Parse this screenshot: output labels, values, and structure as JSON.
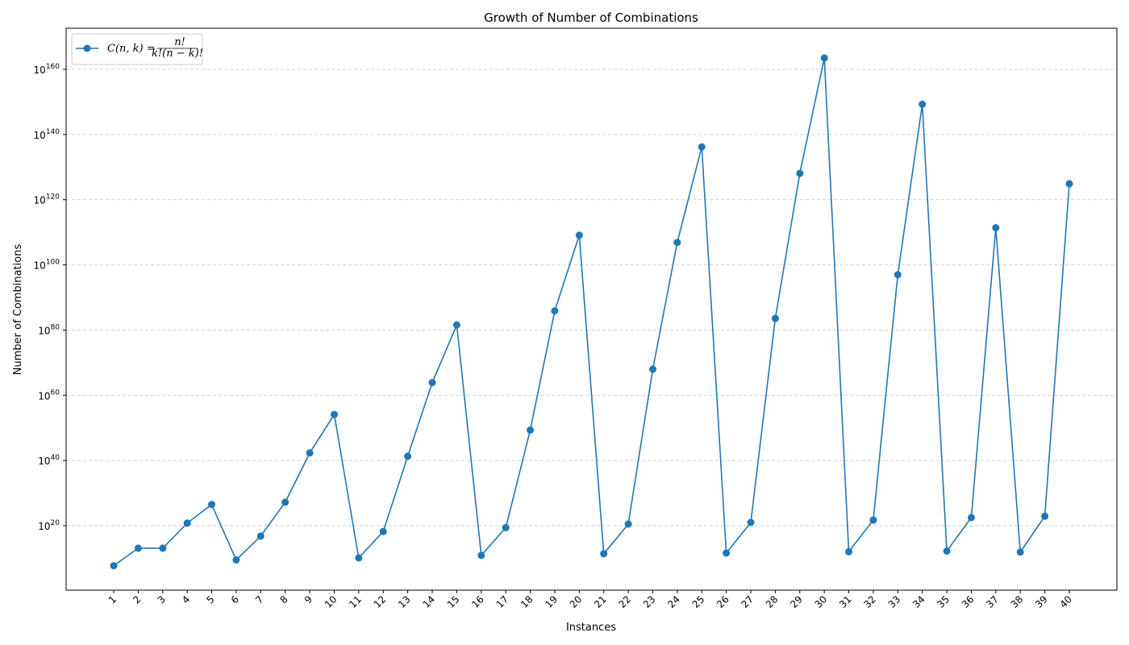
{
  "chart_data": {
    "type": "line",
    "title": "Growth of Number of Combinations",
    "xlabel": "Instances",
    "ylabel": "Number of Combinations",
    "yscale": "log",
    "x": [
      1,
      2,
      3,
      4,
      5,
      6,
      7,
      8,
      9,
      10,
      11,
      12,
      13,
      14,
      15,
      16,
      17,
      18,
      19,
      20,
      21,
      22,
      23,
      24,
      25,
      26,
      27,
      28,
      29,
      30,
      31,
      32,
      33,
      34,
      35,
      36,
      37,
      38,
      39,
      40
    ],
    "x_tick_labels": [
      "1",
      "2",
      "3",
      "4",
      "5",
      "6",
      "7",
      "8",
      "9",
      "10",
      "11",
      "12",
      "13",
      "14",
      "15",
      "16",
      "17",
      "18",
      "19",
      "20",
      "21",
      "22",
      "23",
      "24",
      "25",
      "26",
      "27",
      "28",
      "29",
      "30",
      "31",
      "32",
      "33",
      "34",
      "35",
      "36",
      "37",
      "38",
      "39",
      "40"
    ],
    "series": [
      {
        "name": "C(n,k) = n! / (k!(n−k)!)",
        "color": "#1f77b4",
        "marker": "circle",
        "log10_values": [
          7.7,
          13.1,
          13.1,
          20.8,
          26.5,
          9.5,
          16.8,
          27.2,
          42.3,
          54.1,
          10.1,
          18.2,
          41.3,
          63.9,
          81.6,
          10.9,
          19.4,
          49.3,
          85.9,
          109.1,
          11.4,
          20.5,
          68.0,
          106.9,
          136.2,
          11.6,
          21.0,
          83.6,
          128.1,
          163.5,
          12.0,
          21.7,
          97.0,
          149.3,
          12.2,
          22.5,
          111.4,
          11.9,
          22.9,
          124.9
        ]
      }
    ],
    "y_ticks": [
      {
        "exponent": 20,
        "base": "10",
        "exp": "20"
      },
      {
        "exponent": 40,
        "base": "10",
        "exp": "40"
      },
      {
        "exponent": 60,
        "base": "10",
        "exp": "60"
      },
      {
        "exponent": 80,
        "base": "10",
        "exp": "80"
      },
      {
        "exponent": 100,
        "base": "10",
        "exp": "100"
      },
      {
        "exponent": 120,
        "base": "10",
        "exp": "120"
      },
      {
        "exponent": 140,
        "base": "10",
        "exp": "140"
      },
      {
        "exponent": 160,
        "base": "10",
        "exp": "160"
      }
    ],
    "ylim_log10": [
      0,
      175
    ],
    "grid": "y-dashed",
    "legend_position": "top-left",
    "legend": {
      "prefix": "C(n, k) = ",
      "numerator": "n!",
      "denominator": "k!(n − k)!"
    }
  }
}
